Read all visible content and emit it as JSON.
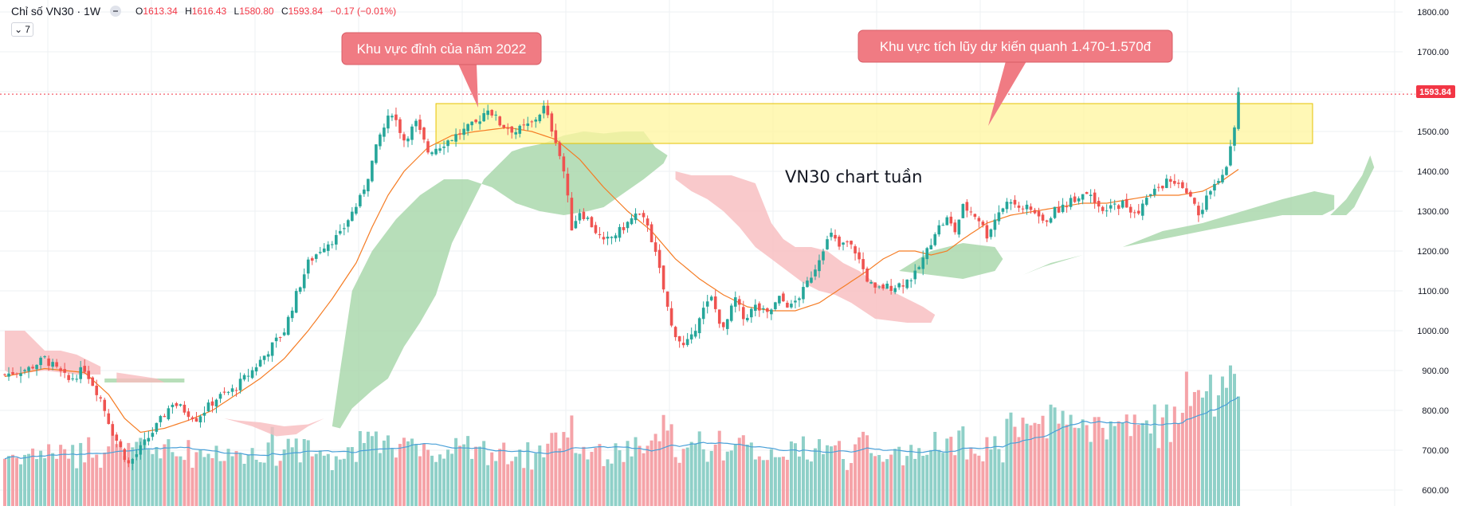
{
  "header": {
    "symbol_title": "Chỉ số VN30 · 1W",
    "o_label": "O",
    "o_value": "1613.34",
    "h_label": "H",
    "h_value": "1616.43",
    "l_label": "L",
    "l_value": "1580.80",
    "c_label": "C",
    "c_value": "1593.84",
    "change": "−0.17 (−0.01%)",
    "indicator_count": "7"
  },
  "annotations": {
    "peak_2022": "Khu vực đỉnh của năm 2022",
    "accumulation": "Khu vực tích lũy dự kiến quanh 1.470-1.570đ",
    "chart_caption": "VN30 chart tuần"
  },
  "last_price_label": "1593.84",
  "colors": {
    "up": "#26a69a",
    "down": "#ef5350",
    "vol_up": "#8fd0c8",
    "vol_down": "#f5a3a8",
    "ma": "#f57c24",
    "vol_ma": "#4aa0d8",
    "cloud_bull": "#a5d6a7",
    "cloud_bear": "#f8bbbe",
    "zone": "#fff59d",
    "zone_border": "#e6c200",
    "callout": "#f07b83",
    "grid": "#eef0f3",
    "price_line": "#f23645"
  },
  "chart_data": {
    "type": "candlestick",
    "timeframe": "1W",
    "ylim": [
      560,
      1830
    ],
    "y_ticks": [
      "1800.00",
      "1700.00",
      "1600.00",
      "1500.00",
      "1400.00",
      "1300.00",
      "1200.00",
      "1100.00",
      "1000.00",
      "900.00",
      "800.00",
      "700.00",
      "600.00"
    ],
    "y_tick_values": [
      1800,
      1700,
      1600,
      1500,
      1400,
      1300,
      1200,
      1100,
      1000,
      900,
      800,
      700,
      600
    ],
    "highlight_zone": [
      1470,
      1570
    ],
    "last_close": 1593.84,
    "close_anchors": [
      [
        0,
        890
      ],
      [
        6,
        905
      ],
      [
        10,
        930
      ],
      [
        16,
        875
      ],
      [
        20,
        905
      ],
      [
        24,
        830
      ],
      [
        27,
        745
      ],
      [
        31,
        665
      ],
      [
        33,
        690
      ],
      [
        38,
        760
      ],
      [
        42,
        820
      ],
      [
        45,
        800
      ],
      [
        48,
        780
      ],
      [
        50,
        800
      ],
      [
        53,
        830
      ],
      [
        57,
        850
      ],
      [
        62,
        900
      ],
      [
        66,
        950
      ],
      [
        70,
        1000
      ],
      [
        73,
        1090
      ],
      [
        76,
        1170
      ],
      [
        80,
        1215
      ],
      [
        84,
        1240
      ],
      [
        86,
        1280
      ],
      [
        89,
        1330
      ],
      [
        91,
        1390
      ],
      [
        94,
        1490
      ],
      [
        97,
        1550
      ],
      [
        100,
        1480
      ],
      [
        103,
        1520
      ],
      [
        106,
        1450
      ],
      [
        109,
        1465
      ],
      [
        113,
        1490
      ],
      [
        118,
        1520
      ],
      [
        121,
        1560
      ],
      [
        124,
        1520
      ],
      [
        128,
        1500
      ],
      [
        132,
        1520
      ],
      [
        135,
        1560
      ],
      [
        138,
        1480
      ],
      [
        140,
        1400
      ],
      [
        142,
        1260
      ],
      [
        144,
        1300
      ],
      [
        146,
        1280
      ],
      [
        150,
        1220
      ],
      [
        154,
        1250
      ],
      [
        158,
        1290
      ],
      [
        161,
        1270
      ],
      [
        164,
        1150
      ],
      [
        167,
        1010
      ],
      [
        170,
        960
      ],
      [
        172,
        980
      ],
      [
        174,
        1040
      ],
      [
        177,
        1080
      ],
      [
        180,
        1000
      ],
      [
        183,
        1080
      ],
      [
        185,
        1030
      ],
      [
        188,
        1060
      ],
      [
        191,
        1040
      ],
      [
        194,
        1080
      ],
      [
        197,
        1060
      ],
      [
        200,
        1100
      ],
      [
        203,
        1160
      ],
      [
        205,
        1210
      ],
      [
        207,
        1240
      ],
      [
        209,
        1210
      ],
      [
        211,
        1220
      ],
      [
        213,
        1200
      ],
      [
        216,
        1130
      ],
      [
        218,
        1100
      ],
      [
        220,
        1110
      ],
      [
        222,
        1110
      ],
      [
        225,
        1120
      ],
      [
        228,
        1140
      ],
      [
        231,
        1200
      ],
      [
        233,
        1250
      ],
      [
        236,
        1280
      ],
      [
        238,
        1250
      ],
      [
        240,
        1310
      ],
      [
        242,
        1300
      ],
      [
        244,
        1280
      ],
      [
        246,
        1240
      ],
      [
        249,
        1300
      ],
      [
        252,
        1330
      ],
      [
        255,
        1310
      ],
      [
        258,
        1300
      ],
      [
        260,
        1270
      ],
      [
        263,
        1300
      ],
      [
        266,
        1320
      ],
      [
        269,
        1340
      ],
      [
        272,
        1350
      ],
      [
        275,
        1290
      ],
      [
        277,
        1310
      ],
      [
        280,
        1320
      ],
      [
        283,
        1290
      ],
      [
        286,
        1330
      ],
      [
        289,
        1360
      ],
      [
        292,
        1380
      ],
      [
        295,
        1350
      ],
      [
        298,
        1320
      ],
      [
        299,
        1280
      ],
      [
        300,
        1300
      ],
      [
        302,
        1360
      ],
      [
        304,
        1380
      ],
      [
        306,
        1420
      ],
      [
        307,
        1460
      ],
      [
        308,
        1520
      ],
      [
        309,
        1595
      ]
    ],
    "ma_anchors": [
      [
        0,
        885
      ],
      [
        10,
        905
      ],
      [
        20,
        895
      ],
      [
        26,
        840
      ],
      [
        30,
        780
      ],
      [
        34,
        745
      ],
      [
        40,
        755
      ],
      [
        46,
        775
      ],
      [
        52,
        800
      ],
      [
        58,
        840
      ],
      [
        64,
        880
      ],
      [
        70,
        930
      ],
      [
        76,
        1000
      ],
      [
        82,
        1080
      ],
      [
        88,
        1170
      ],
      [
        92,
        1260
      ],
      [
        96,
        1340
      ],
      [
        100,
        1400
      ],
      [
        106,
        1460
      ],
      [
        112,
        1490
      ],
      [
        118,
        1500
      ],
      [
        126,
        1510
      ],
      [
        132,
        1500
      ],
      [
        138,
        1480
      ],
      [
        144,
        1430
      ],
      [
        150,
        1360
      ],
      [
        156,
        1300
      ],
      [
        162,
        1250
      ],
      [
        168,
        1180
      ],
      [
        174,
        1130
      ],
      [
        180,
        1090
      ],
      [
        186,
        1060
      ],
      [
        192,
        1050
      ],
      [
        198,
        1050
      ],
      [
        204,
        1070
      ],
      [
        210,
        1110
      ],
      [
        216,
        1150
      ],
      [
        220,
        1180
      ],
      [
        224,
        1200
      ],
      [
        228,
        1200
      ],
      [
        232,
        1190
      ],
      [
        236,
        1200
      ],
      [
        240,
        1230
      ],
      [
        246,
        1270
      ],
      [
        252,
        1290
      ],
      [
        258,
        1300
      ],
      [
        264,
        1310
      ],
      [
        270,
        1320
      ],
      [
        276,
        1320
      ],
      [
        282,
        1330
      ],
      [
        288,
        1340
      ],
      [
        294,
        1340
      ],
      [
        300,
        1350
      ],
      [
        304,
        1370
      ],
      [
        309,
        1405
      ]
    ],
    "cloud_bull_segments": [
      [
        [
          25,
          880
        ],
        [
          45,
          880
        ],
        [
          45,
          870
        ],
        [
          25,
          870
        ]
      ],
      [
        [
          84,
          755
        ],
        [
          87,
          805
        ],
        [
          92,
          850
        ],
        [
          96,
          880
        ],
        [
          100,
          960
        ],
        [
          104,
          1020
        ],
        [
          108,
          1090
        ],
        [
          112,
          1220
        ],
        [
          116,
          1300
        ],
        [
          120,
          1380
        ],
        [
          124,
          1420
        ],
        [
          127,
          1450
        ],
        [
          130,
          1460
        ],
        [
          135,
          1470
        ],
        [
          140,
          1490
        ],
        [
          145,
          1500
        ],
        [
          150,
          1495
        ],
        [
          155,
          1500
        ],
        [
          160,
          1500
        ],
        [
          163,
          1460
        ],
        [
          166,
          1440
        ],
        [
          165,
          1420
        ],
        [
          160,
          1380
        ],
        [
          155,
          1345
        ],
        [
          150,
          1310
        ],
        [
          146,
          1300
        ],
        [
          140,
          1290
        ],
        [
          134,
          1300
        ],
        [
          128,
          1320
        ],
        [
          122,
          1360
        ],
        [
          116,
          1380
        ],
        [
          110,
          1380
        ],
        [
          104,
          1340
        ],
        [
          98,
          1280
        ],
        [
          92,
          1200
        ],
        [
          87,
          1100
        ],
        [
          84,
          900
        ],
        [
          82,
          760
        ]
      ],
      [
        [
          232,
          1200
        ],
        [
          240,
          1220
        ],
        [
          248,
          1210
        ],
        [
          250,
          1180
        ],
        [
          248,
          1150
        ],
        [
          240,
          1130
        ],
        [
          232,
          1140
        ],
        [
          224,
          1150
        ]
      ],
      [
        [
          255,
          1140
        ],
        [
          262,
          1170
        ],
        [
          270,
          1190
        ],
        [
          280,
          1210
        ],
        [
          290,
          1250
        ],
        [
          300,
          1270
        ],
        [
          310,
          1300
        ],
        [
          320,
          1330
        ],
        [
          328,
          1350
        ],
        [
          333,
          1340
        ],
        [
          333,
          1305
        ],
        [
          330,
          1290
        ],
        [
          320,
          1290
        ],
        [
          310,
          1270
        ],
        [
          300,
          1250
        ],
        [
          290,
          1230
        ],
        [
          280,
          1210
        ],
        [
          270,
          1190
        ],
        [
          260,
          1160
        ],
        [
          255,
          1140
        ]
      ],
      [
        [
          332,
          1290
        ],
        [
          336,
          1330
        ],
        [
          340,
          1390
        ],
        [
          342,
          1440
        ],
        [
          343,
          1410
        ],
        [
          340,
          1350
        ],
        [
          338,
          1310
        ],
        [
          336,
          1290
        ]
      ]
    ],
    "cloud_bear_segments": [
      [
        [
          0,
          1000
        ],
        [
          5,
          1000
        ],
        [
          10,
          950
        ],
        [
          14,
          950
        ],
        [
          18,
          940
        ],
        [
          24,
          910
        ],
        [
          24,
          890
        ],
        [
          18,
          890
        ],
        [
          10,
          900
        ],
        [
          2,
          890
        ],
        [
          0,
          900
        ]
      ],
      [
        [
          28,
          895
        ],
        [
          38,
          880
        ],
        [
          40,
          870
        ],
        [
          28,
          870
        ]
      ],
      [
        [
          55,
          780
        ],
        [
          62,
          760
        ],
        [
          68,
          735
        ],
        [
          73,
          740
        ],
        [
          76,
          760
        ],
        [
          80,
          780
        ],
        [
          76,
          765
        ],
        [
          70,
          760
        ],
        [
          64,
          770
        ],
        [
          58,
          775
        ]
      ],
      [
        [
          168,
          1400
        ],
        [
          172,
          1390
        ],
        [
          176,
          1390
        ],
        [
          182,
          1390
        ],
        [
          188,
          1370
        ],
        [
          190,
          1320
        ],
        [
          192,
          1270
        ],
        [
          195,
          1230
        ],
        [
          198,
          1210
        ],
        [
          202,
          1210
        ],
        [
          206,
          1200
        ],
        [
          210,
          1170
        ],
        [
          214,
          1150
        ],
        [
          218,
          1120
        ],
        [
          222,
          1100
        ],
        [
          226,
          1080
        ],
        [
          230,
          1060
        ],
        [
          233,
          1040
        ],
        [
          232,
          1020
        ],
        [
          226,
          1020
        ],
        [
          218,
          1030
        ],
        [
          212,
          1070
        ],
        [
          208,
          1090
        ],
        [
          204,
          1100
        ],
        [
          200,
          1120
        ],
        [
          196,
          1150
        ],
        [
          192,
          1180
        ],
        [
          188,
          1210
        ],
        [
          184,
          1260
        ],
        [
          180,
          1300
        ],
        [
          176,
          1330
        ],
        [
          172,
          1350
        ],
        [
          168,
          1380
        ]
      ]
    ],
    "volume_baseline": 555,
    "volume_scale": 0.55
  }
}
